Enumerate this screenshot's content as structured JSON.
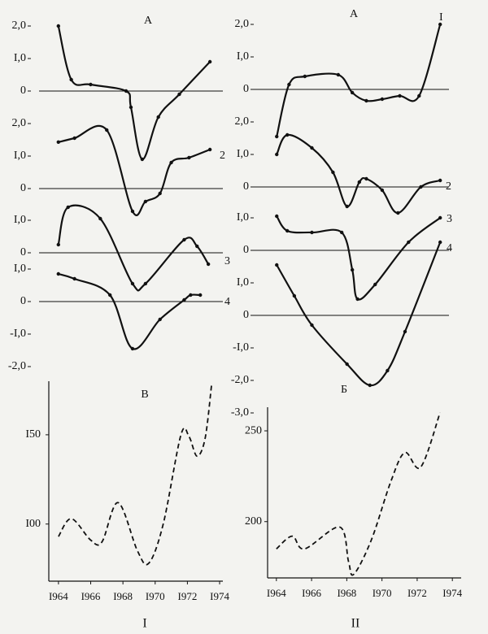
{
  "chart_data": [
    {
      "type": "line",
      "title": "A",
      "xlim": [
        1962.8,
        1974.2
      ],
      "ylim": [
        -2.2,
        2.1
      ],
      "yticks": [
        {
          "value": 2,
          "label": "2,0"
        },
        {
          "value": 1,
          "label": "I,0"
        },
        0
      ],
      "x": [
        1964,
        1964.8,
        1966,
        1968.2,
        1968.5,
        1969.2,
        1970.2,
        1971.5,
        1973.4
      ],
      "series": [
        {
          "color": "#111111",
          "values": [
            2.0,
            0.35,
            0.2,
            0,
            -0.5,
            -2.1,
            -0.8,
            -0.1,
            0.9
          ]
        }
      ]
    },
    {
      "type": "line",
      "xlim": [
        1962.8,
        1974.2
      ],
      "ylim": [
        -0.8,
        2.1
      ],
      "yticks": [
        {
          "value": 2,
          "label": "2,0"
        },
        {
          "value": 1,
          "label": "I,0"
        },
        0
      ],
      "x": [
        1964,
        1965,
        1967,
        1968.6,
        1969.4,
        1970.3,
        1971,
        1972.1,
        1973.4
      ],
      "series": [
        {
          "name": "2",
          "color": "#111111",
          "values": [
            1.43,
            1.55,
            1.8,
            -0.7,
            -0.4,
            -0.15,
            0.8,
            0.95,
            1.2
          ]
        }
      ]
    },
    {
      "type": "line",
      "xlim": [
        1962.8,
        1974.2
      ],
      "ylim": [
        -1.1,
        1.5
      ],
      "yticks": [
        {
          "value": 1,
          "label": "I,0"
        },
        0
      ],
      "x": [
        1964,
        1964.6,
        1966.6,
        1968.6,
        1969.4,
        1971.8,
        1972.6,
        1973.3
      ],
      "series": [
        {
          "name": "3",
          "color": "#111111",
          "values": [
            0.25,
            1.4,
            1.05,
            -0.95,
            -0.95,
            0.4,
            0.2,
            -0.35
          ]
        }
      ]
    },
    {
      "type": "line",
      "xlim": [
        1962.8,
        1974.2
      ],
      "ylim": [
        -2.1,
        1.1
      ],
      "yticks": [
        {
          "value": 1,
          "label": "I,0"
        },
        0,
        {
          "value": -1,
          "label": "-I,0"
        },
        {
          "value": -2,
          "label": "-2,0"
        }
      ],
      "x": [
        1964,
        1965,
        1967.2,
        1968.6,
        1970.3,
        1971.8,
        1972.2,
        1972.8
      ],
      "series": [
        {
          "name": "4",
          "color": "#111111",
          "values": [
            0.85,
            0.7,
            0.2,
            -1.45,
            -0.55,
            0.05,
            0.2,
            0.2
          ]
        }
      ]
    },
    {
      "type": "dashed-line",
      "title": "B",
      "xlabel": "I",
      "xlim": [
        1963.4,
        1974.2
      ],
      "ylim": [
        68,
        180
      ],
      "yticks": [
        {
          "value": 150,
          "label": "I50"
        },
        {
          "value": 100,
          "label": "I00"
        }
      ],
      "xticks": [
        {
          "value": 1964,
          "label": "I964"
        },
        {
          "value": 1966,
          "label": "I966"
        },
        {
          "value": 1968,
          "label": "I968"
        },
        {
          "value": 1970,
          "label": "I970"
        },
        {
          "value": 1972,
          "label": "I972"
        },
        {
          "value": 1974,
          "label": "I974"
        }
      ],
      "x": [
        1964,
        1964.8,
        1966,
        1966.7,
        1967.7,
        1968.9,
        1969.6,
        1970.5,
        1971.6,
        1972.1,
        1972.6,
        1973.1,
        1973.5
      ],
      "series": [
        {
          "color": "#111111",
          "values": [
            93,
            103,
            91,
            90,
            112,
            85,
            78,
            100,
            150,
            149,
            138,
            148,
            178
          ]
        }
      ]
    },
    {
      "type": "line",
      "title": "A",
      "xlim": [
        1962.6,
        1973.8
      ],
      "ylim": [
        -1.6,
        2.1
      ],
      "yticks": [
        {
          "value": 2,
          "label": "2,0"
        },
        {
          "value": 1,
          "label": "I,0"
        },
        0
      ],
      "x": [
        1964,
        1964.7,
        1965.6,
        1967.5,
        1968.3,
        1969.1,
        1970,
        1971,
        1972.1,
        1973.3
      ],
      "series": [
        {
          "name": "I",
          "color": "#111111",
          "values": [
            -1.45,
            0.15,
            0.4,
            0.45,
            -0.1,
            -0.35,
            -0.3,
            -0.2,
            -0.2,
            2.0
          ]
        }
      ]
    },
    {
      "type": "line",
      "xlim": [
        1962.6,
        1973.8
      ],
      "ylim": [
        -0.9,
        1.8
      ],
      "yticks": [
        {
          "value": 2,
          "label": "2,0"
        },
        {
          "value": 1,
          "label": "I,0"
        },
        0
      ],
      "x": [
        1964,
        1964.6,
        1966,
        1967.2,
        1968,
        1968.7,
        1969.1,
        1970,
        1970.9,
        1972.2,
        1973.3
      ],
      "series": [
        {
          "name": "2",
          "color": "#111111",
          "values": [
            1.0,
            1.6,
            1.2,
            0.45,
            -0.6,
            0.15,
            0.25,
            -0.1,
            -0.8,
            0.0,
            0.2
          ]
        }
      ]
    },
    {
      "type": "line",
      "xlim": [
        1962.6,
        1973.8
      ],
      "ylim": [
        -1.6,
        1.3
      ],
      "yticks": [
        {
          "value": 1,
          "label": "I,0"
        },
        0
      ],
      "x": [
        1964,
        1964.6,
        1966,
        1967.7,
        1968.3,
        1968.6,
        1969.6,
        1971.5,
        1973.3
      ],
      "series": [
        {
          "name": "3",
          "color": "#111111",
          "values": [
            1.05,
            0.6,
            0.55,
            0.55,
            -0.6,
            -1.5,
            -1.05,
            0.25,
            1.0
          ]
        }
      ]
    },
    {
      "type": "line",
      "xlim": [
        1962.6,
        1973.8
      ],
      "ylim": [
        -3.1,
        2.3
      ],
      "yticks": [
        {
          "value": 1,
          "label": "I,0"
        },
        0,
        {
          "value": -1,
          "label": "-I,0"
        },
        {
          "value": -2,
          "label": "-2,0"
        },
        {
          "value": -3,
          "label": "-3,0"
        }
      ],
      "x": [
        1964,
        1965,
        1966,
        1968,
        1969.3,
        1970.3,
        1971.3,
        1973.3
      ],
      "series": [
        {
          "name": "4",
          "color": "#111111",
          "values": [
            1.55,
            0.6,
            -0.3,
            -1.5,
            -2.15,
            -1.7,
            -0.5,
            2.25
          ]
        }
      ]
    },
    {
      "type": "dashed-line",
      "title": "Б",
      "xlabel": "II",
      "xlim": [
        1963.5,
        1974.5
      ],
      "ylim": [
        169,
        263
      ],
      "yticks": [
        250,
        200
      ],
      "xticks": [
        {
          "value": 1964,
          "label": "I964"
        },
        {
          "value": 1966,
          "label": "I966"
        },
        {
          "value": 1968,
          "label": "I968"
        },
        {
          "value": 1970,
          "label": "I970"
        },
        {
          "value": 1972,
          "label": "I972"
        },
        {
          "value": 1974,
          "label": "I974"
        }
      ],
      "x": [
        1964,
        1964.9,
        1965.6,
        1967.6,
        1968.1,
        1968.4,
        1969.4,
        1970.5,
        1971.3,
        1972.2,
        1973.3
      ],
      "series": [
        {
          "color": "#111111",
          "values": [
            185,
            192,
            185,
            197,
            178,
            171,
            190,
            222,
            238,
            230,
            260
          ]
        }
      ]
    }
  ]
}
